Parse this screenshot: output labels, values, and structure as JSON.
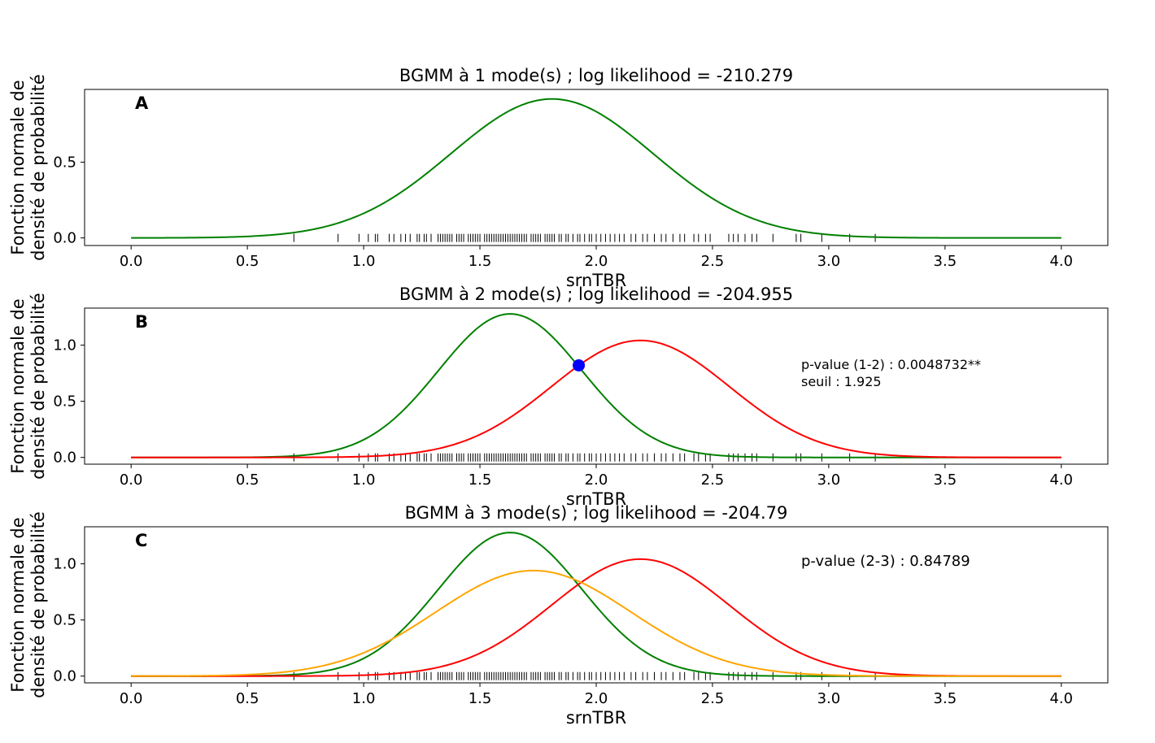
{
  "figure": {
    "x_tick_labels": [
      "0.0",
      "0.5",
      "1.0",
      "1.5",
      "2.0",
      "2.5",
      "3.0",
      "3.5",
      "4.0"
    ]
  },
  "chart_data": [
    {
      "type": "line",
      "panel_letter": "A",
      "title": "BGMM à 1 mode(s) ; log likelihood = -210.279",
      "xlabel": "srnTBR",
      "ylabel_line1": "Fonction normale de",
      "ylabel_line2": "densité de probabilité",
      "xlim": [
        -0.2,
        4.2
      ],
      "ylim": [
        -0.05,
        0.98
      ],
      "x": [
        0.0,
        4.0
      ],
      "y_ticks": [
        0.0,
        0.5
      ],
      "y_tick_labels": [
        "0.0",
        "0.5"
      ],
      "series": [
        {
          "color": "#008000",
          "mean": 1.81,
          "sd": 0.435,
          "peak": 0.917
        }
      ],
      "annotations": [],
      "points": []
    },
    {
      "type": "line",
      "panel_letter": "B",
      "title": "BGMM à 2 mode(s) ; log likelihood = -204.955",
      "xlabel": "srnTBR",
      "ylabel_line1": "Fonction normale de",
      "ylabel_line2": "densité de probabilité",
      "xlim": [
        -0.2,
        4.2
      ],
      "ylim": [
        -0.06,
        1.33
      ],
      "x": [
        0.0,
        4.0
      ],
      "y_ticks": [
        0.0,
        0.5,
        1.0
      ],
      "y_tick_labels": [
        "0.0",
        "0.5",
        "1.0"
      ],
      "series": [
        {
          "color": "#008000",
          "mean": 1.63,
          "sd": 0.308,
          "peak": 1.278
        },
        {
          "color": "#ff0000",
          "mean": 2.19,
          "sd": 0.382,
          "peak": 1.042
        }
      ],
      "annotations": [
        "p-value (1-2) : 0.0048732**",
        "seuil : 1.925"
      ],
      "points": [
        {
          "x": 1.925,
          "y": 0.82,
          "color": "#0000ff"
        }
      ]
    },
    {
      "type": "line",
      "panel_letter": "C",
      "title": "BGMM à 3 mode(s) ; log likelihood = -204.79",
      "xlabel": "srnTBR",
      "ylabel_line1": "Fonction normale de",
      "ylabel_line2": "densité de probabilité",
      "xlim": [
        -0.2,
        4.2
      ],
      "ylim": [
        -0.06,
        1.33
      ],
      "x": [
        0.0,
        4.0
      ],
      "y_ticks": [
        0.0,
        0.5,
        1.0
      ],
      "y_tick_labels": [
        "0.0",
        "0.5",
        "1.0"
      ],
      "series": [
        {
          "color": "#008000",
          "mean": 1.63,
          "sd": 0.308,
          "peak": 1.278
        },
        {
          "color": "#ff0000",
          "mean": 2.19,
          "sd": 0.382,
          "peak": 1.042
        },
        {
          "color": "#ffa500",
          "mean": 1.73,
          "sd": 0.42,
          "peak": 0.94
        }
      ],
      "annotations": [
        "p-value (2-3) : 0.84789"
      ],
      "points": []
    }
  ],
  "rug_values": [
    0.7,
    0.89,
    0.98,
    1.02,
    1.05,
    1.06,
    1.11,
    1.13,
    1.16,
    1.18,
    1.2,
    1.23,
    1.24,
    1.26,
    1.27,
    1.29,
    1.32,
    1.33,
    1.34,
    1.35,
    1.36,
    1.37,
    1.38,
    1.4,
    1.41,
    1.42,
    1.43,
    1.45,
    1.46,
    1.47,
    1.48,
    1.49,
    1.5,
    1.52,
    1.53,
    1.54,
    1.55,
    1.56,
    1.57,
    1.58,
    1.59,
    1.6,
    1.61,
    1.62,
    1.63,
    1.64,
    1.65,
    1.66,
    1.67,
    1.68,
    1.69,
    1.7,
    1.72,
    1.73,
    1.74,
    1.75,
    1.76,
    1.78,
    1.79,
    1.8,
    1.81,
    1.82,
    1.84,
    1.85,
    1.87,
    1.88,
    1.9,
    1.92,
    1.93,
    1.95,
    1.97,
    1.98,
    2.0,
    2.02,
    2.04,
    2.06,
    2.08,
    2.1,
    2.12,
    2.15,
    2.17,
    2.2,
    2.22,
    2.25,
    2.28,
    2.3,
    2.33,
    2.36,
    2.38,
    2.42,
    2.44,
    2.47,
    2.49,
    2.57,
    2.59,
    2.61,
    2.64,
    2.67,
    2.69,
    2.76,
    2.86,
    2.88,
    2.97,
    3.09,
    3.2
  ]
}
